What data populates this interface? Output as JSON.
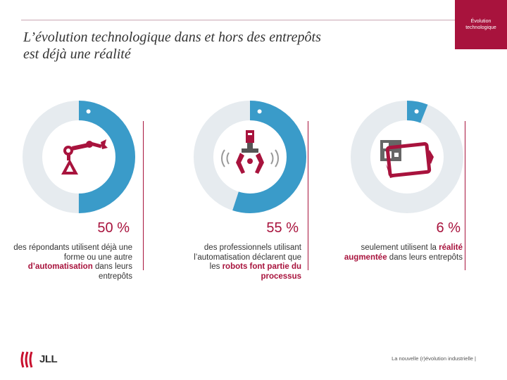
{
  "slide": {
    "title_line1": "L’évolution technologique dans et hors des entrepôts",
    "title_line2": "est déjà une réalité",
    "tab_line1": "Évolution",
    "tab_line2": "technologique",
    "footer": "La nouvelle (r)évolution industrielle |",
    "logo_text": "JLL"
  },
  "colors": {
    "accent": "#a8133d",
    "blue": "#3a9bc9",
    "grey": "#e6ebef"
  },
  "stats": [
    {
      "value": 50,
      "percent_label": "50 %",
      "icon": "robot-arm-icon",
      "text_before": "des répondants utilisent déjà une forme ou une autre",
      "text_highlight": "d’automatisation",
      "text_after": "dans leurs entrepôts"
    },
    {
      "value": 55,
      "percent_label": "55 %",
      "icon": "robot-gripper-icon",
      "text_before": "des professionnels utilisant l’automatisation déclarent que les",
      "text_highlight": "robots font partie du processus",
      "text_after": ""
    },
    {
      "value": 6,
      "percent_label": "6 %",
      "icon": "augmented-reality-tablet-icon",
      "text_before": "seulement utilisent la",
      "text_highlight": "réalité augmentée",
      "text_after": "dans leurs entrepôts"
    }
  ]
}
